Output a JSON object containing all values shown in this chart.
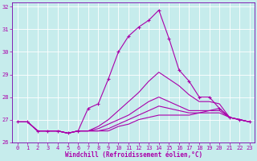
{
  "xlabel": "Windchill (Refroidissement éolien,°C)",
  "xlim": [
    -0.5,
    23.5
  ],
  "ylim": [
    26,
    32.2
  ],
  "yticks": [
    26,
    27,
    28,
    29,
    30,
    31,
    32
  ],
  "xticks": [
    0,
    1,
    2,
    3,
    4,
    5,
    6,
    7,
    8,
    9,
    10,
    11,
    12,
    13,
    14,
    15,
    16,
    17,
    18,
    19,
    20,
    21,
    22,
    23
  ],
  "bg_color": "#c6ecec",
  "grid_color": "#aadddd",
  "spine_color": "#7700aa",
  "line_color": "#aa00aa",
  "lines": [
    {
      "x": [
        0,
        1,
        2,
        3,
        4,
        5,
        6,
        7,
        8,
        9,
        10,
        11,
        12,
        13,
        14,
        15,
        16,
        17,
        18,
        19,
        20,
        21,
        22,
        23
      ],
      "y": [
        26.9,
        26.9,
        26.5,
        26.5,
        26.5,
        26.4,
        26.5,
        27.5,
        27.7,
        28.8,
        30.0,
        30.7,
        31.1,
        31.4,
        31.85,
        30.6,
        29.2,
        28.7,
        28.0,
        28.0,
        27.5,
        27.1,
        27.0,
        26.9
      ],
      "has_marker": true
    },
    {
      "x": [
        0,
        1,
        2,
        3,
        4,
        5,
        6,
        7,
        8,
        9,
        10,
        11,
        12,
        13,
        14,
        15,
        16,
        17,
        18,
        19,
        20,
        21,
        22,
        23
      ],
      "y": [
        26.9,
        26.9,
        26.5,
        26.5,
        26.5,
        26.4,
        26.5,
        26.5,
        26.7,
        27.0,
        27.4,
        27.8,
        28.2,
        28.7,
        29.1,
        28.8,
        28.5,
        28.1,
        27.8,
        27.8,
        27.7,
        27.1,
        27.0,
        26.9
      ],
      "has_marker": false
    },
    {
      "x": [
        0,
        1,
        2,
        3,
        4,
        5,
        6,
        7,
        8,
        9,
        10,
        11,
        12,
        13,
        14,
        15,
        16,
        17,
        18,
        19,
        20,
        21,
        22,
        23
      ],
      "y": [
        26.9,
        26.9,
        26.5,
        26.5,
        26.5,
        26.4,
        26.5,
        26.5,
        26.6,
        26.8,
        27.0,
        27.2,
        27.5,
        27.8,
        28.0,
        27.8,
        27.6,
        27.4,
        27.4,
        27.4,
        27.4,
        27.1,
        27.0,
        26.9
      ],
      "has_marker": false
    },
    {
      "x": [
        0,
        1,
        2,
        3,
        4,
        5,
        6,
        7,
        8,
        9,
        10,
        11,
        12,
        13,
        14,
        15,
        16,
        17,
        18,
        19,
        20,
        21,
        22,
        23
      ],
      "y": [
        26.9,
        26.9,
        26.5,
        26.5,
        26.5,
        26.4,
        26.5,
        26.5,
        26.5,
        26.6,
        26.8,
        27.0,
        27.2,
        27.4,
        27.6,
        27.5,
        27.4,
        27.3,
        27.3,
        27.3,
        27.3,
        27.1,
        27.0,
        26.9
      ],
      "has_marker": false
    },
    {
      "x": [
        0,
        1,
        2,
        3,
        4,
        5,
        6,
        7,
        8,
        9,
        10,
        11,
        12,
        13,
        14,
        15,
        16,
        17,
        18,
        19,
        20,
        21,
        22,
        23
      ],
      "y": [
        26.9,
        26.9,
        26.5,
        26.5,
        26.5,
        26.4,
        26.5,
        26.5,
        26.5,
        26.5,
        26.7,
        26.8,
        27.0,
        27.1,
        27.2,
        27.2,
        27.2,
        27.2,
        27.3,
        27.4,
        27.5,
        27.1,
        27.0,
        26.9
      ],
      "has_marker": false
    }
  ],
  "xlabel_fontsize": 5.5,
  "ylabel_fontsize": 5.5,
  "tick_fontsize": 5.0,
  "line_width": 0.8,
  "marker_size": 3.5
}
